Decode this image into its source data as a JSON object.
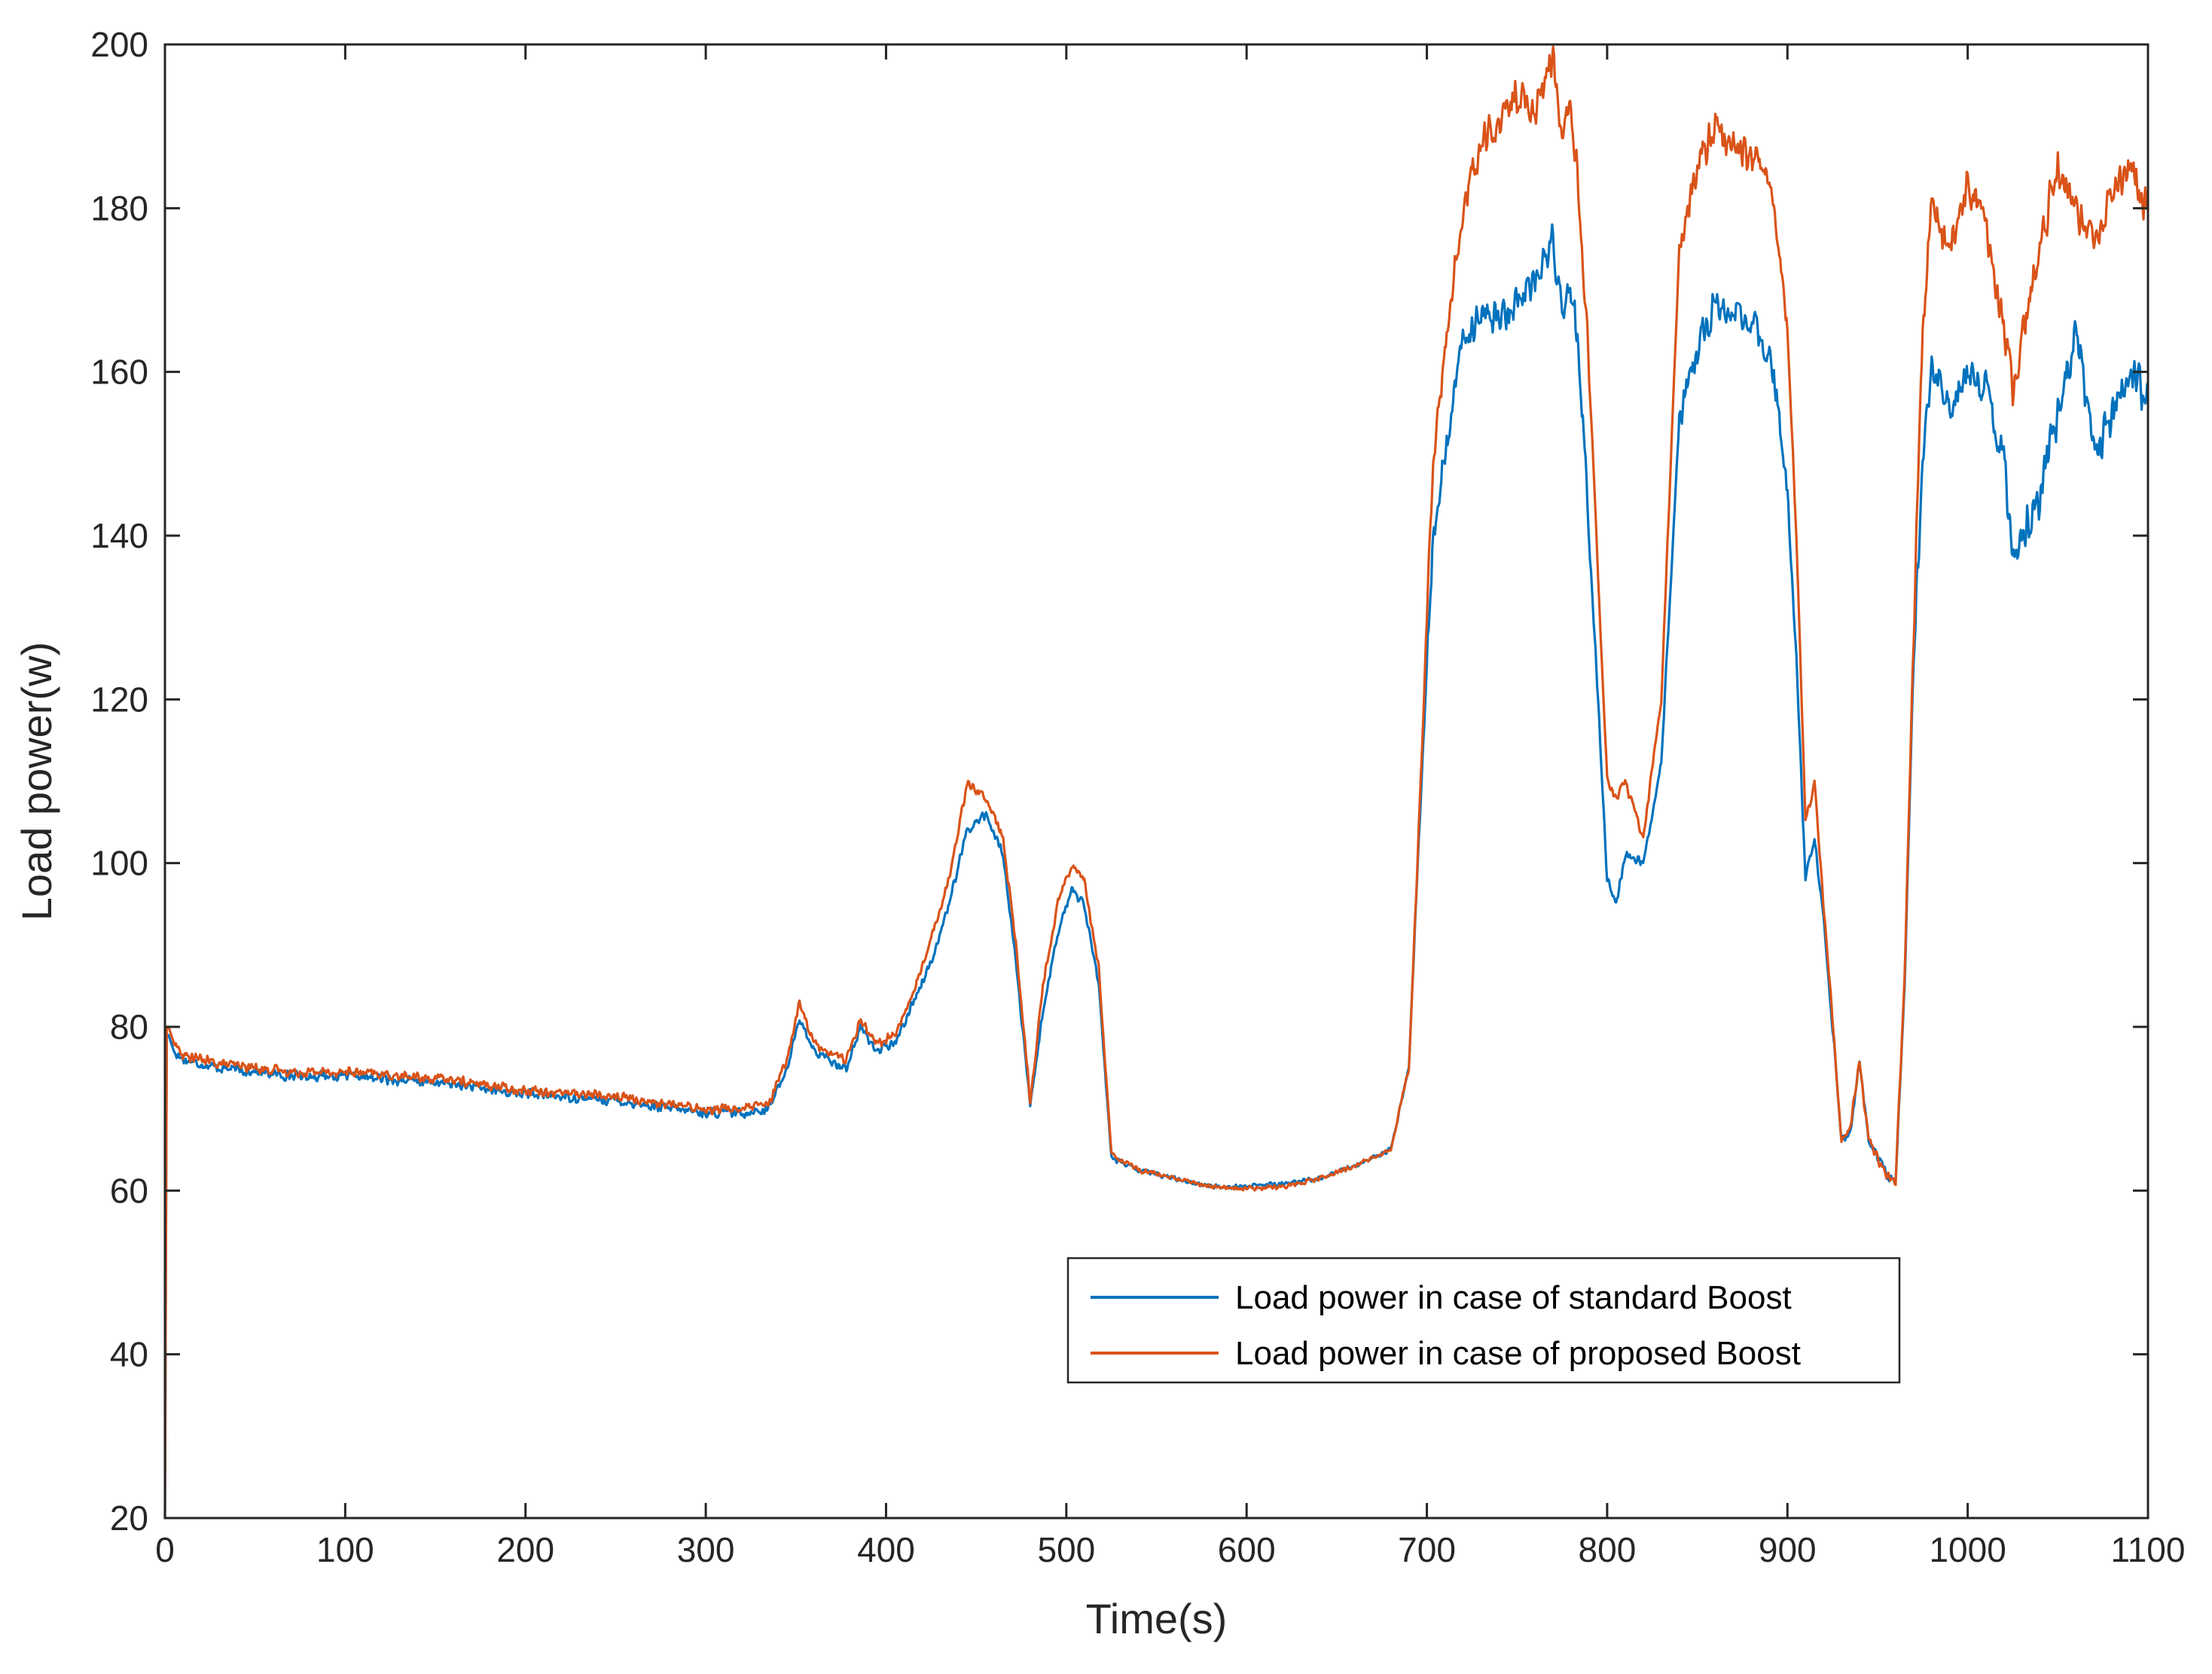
{
  "chart_data": {
    "type": "line",
    "title": "",
    "xlabel": "Time(s)",
    "ylabel": "Load power(w)",
    "xlim": [
      0,
      1100
    ],
    "ylim": [
      20,
      200
    ],
    "xticks": [
      0,
      100,
      200,
      300,
      400,
      500,
      600,
      700,
      800,
      900,
      1000,
      1100
    ],
    "yticks": [
      20,
      40,
      60,
      80,
      100,
      120,
      140,
      160,
      180,
      200
    ],
    "grid": false,
    "legend_location": "lower-right-center",
    "x": [
      0,
      1,
      2,
      5,
      10,
      20,
      30,
      50,
      70,
      100,
      130,
      160,
      190,
      220,
      250,
      280,
      300,
      320,
      335,
      345,
      352,
      360,
      368,
      378,
      386,
      395,
      405,
      415,
      425,
      435,
      445,
      455,
      465,
      472,
      480,
      487,
      495,
      503,
      510,
      518,
      525,
      540,
      560,
      580,
      600,
      620,
      640,
      660,
      680,
      690,
      697,
      703,
      710,
      720,
      730,
      740,
      750,
      760,
      770,
      775,
      780,
      785,
      790,
      795,
      800,
      805,
      810,
      820,
      830,
      840,
      850,
      860,
      870,
      880,
      890,
      895,
      900,
      905,
      910,
      915,
      920,
      925,
      930,
      935,
      940,
      945,
      950,
      955,
      960,
      965,
      970,
      975,
      980,
      990,
      1000,
      1010,
      1020,
      1025,
      1030,
      1040,
      1050,
      1060,
      1070,
      1080,
      1090,
      1100
    ],
    "series": [
      {
        "name": "Load power in case of standard Boost",
        "color": "#0072BD",
        "values": [
          20,
          79,
          79,
          77,
          76,
          75.5,
          75,
          74.5,
          74,
          74,
          73.5,
          73,
          72,
          71.5,
          71,
          70,
          69.5,
          69.5,
          70,
          75,
          81,
          77,
          76,
          75,
          80,
          77,
          78,
          83,
          88,
          95,
          104,
          106,
          101,
          88,
          70,
          82,
          91,
          97,
          95,
          85,
          64,
          62.5,
          61.5,
          60.5,
          60.5,
          60.8,
          61.5,
          63,
          65,
          75,
          110,
          138,
          150,
          164,
          168,
          166,
          169,
          171,
          176,
          168,
          170,
          160,
          140,
          120,
          98,
          95,
          101,
          100,
          112,
          154,
          163,
          168,
          167,
          166,
          162,
          155,
          145,
          125,
          98,
          103,
          93,
          80,
          66,
          67,
          76,
          66,
          64,
          62,
          61,
          85,
          125,
          150,
          160,
          155,
          160,
          158,
          150,
          138,
          140,
          145,
          155,
          165,
          150,
          155,
          160,
          157
        ]
      },
      {
        "name": "Load power in case of proposed Boost",
        "color": "#D95319",
        "values": [
          20,
          80,
          80,
          78,
          76.5,
          76,
          75.5,
          75,
          74.5,
          74.5,
          74,
          73.5,
          72.5,
          72,
          71.5,
          70.5,
          70,
          70,
          70.5,
          76,
          83,
          78,
          77,
          76,
          81,
          78,
          79,
          84,
          91,
          98,
          110,
          108,
          103,
          90,
          71,
          85,
          95,
          100,
          98,
          87,
          64.5,
          62.5,
          61.5,
          60.5,
          60.2,
          60.5,
          61.5,
          63,
          65,
          75,
          112,
          148,
          162,
          180,
          188,
          190,
          194,
          192,
          198,
          188,
          192,
          180,
          160,
          135,
          110,
          108,
          110,
          103,
          120,
          175,
          185,
          190,
          188,
          186,
          184,
          175,
          165,
          140,
          105,
          110,
          95,
          81,
          66,
          68,
          76,
          66,
          64,
          62,
          61,
          86,
          128,
          165,
          180,
          175,
          183,
          178,
          165,
          158,
          163,
          175,
          185,
          180,
          175,
          182,
          185,
          180
        ]
      }
    ]
  }
}
